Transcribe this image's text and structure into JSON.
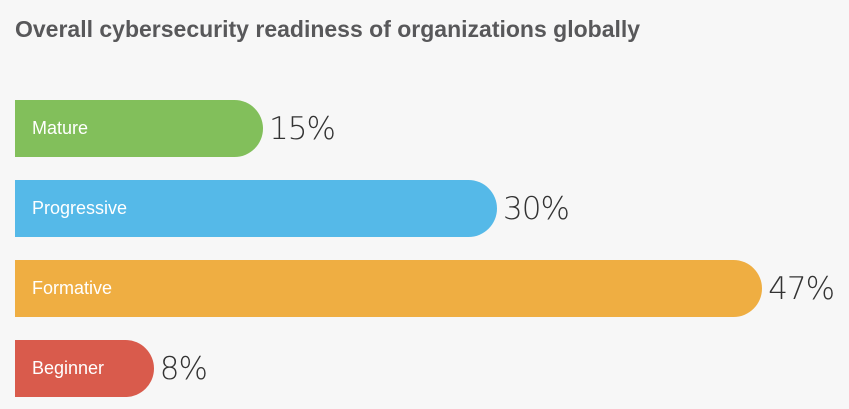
{
  "chart_data": {
    "type": "bar",
    "orientation": "horizontal",
    "title": "Overall cybersecurity readiness of organizations globally",
    "categories": [
      "Mature",
      "Progressive",
      "Formative",
      "Beginner"
    ],
    "values": [
      15,
      30,
      47,
      8
    ],
    "value_labels": [
      "15%",
      "30%",
      "47%",
      "8%"
    ],
    "colors": [
      "#82bf5b",
      "#55b9e8",
      "#efae42",
      "#d95b4c"
    ],
    "grid": false,
    "xlabel": "",
    "ylabel": ""
  }
}
